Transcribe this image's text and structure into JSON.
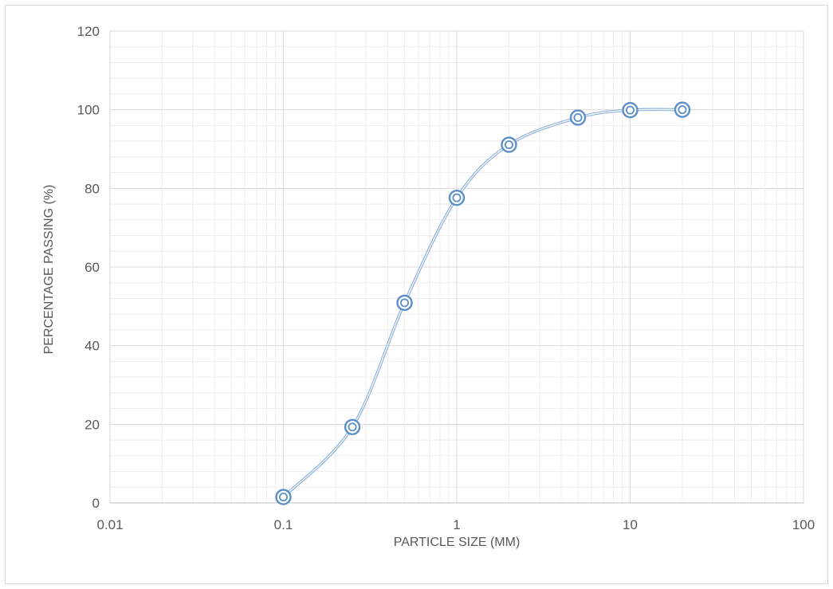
{
  "chart_data": {
    "type": "scatter",
    "title": "",
    "xlabel": "PARTICLE SIZE (MM)",
    "ylabel": "PERCENTAGE PASSING (%)",
    "x_scale": "log",
    "xlim": [
      0.01,
      100
    ],
    "ylim": [
      0,
      120
    ],
    "x_ticks": [
      "0.01",
      "0.1",
      "1",
      "10",
      "100"
    ],
    "y_ticks": [
      "0",
      "20",
      "40",
      "60",
      "80",
      "100",
      "120"
    ],
    "grid": true,
    "legend": "none",
    "line_style": "smoothed",
    "marker": "double-circle",
    "color": "#5b8fc7",
    "series": [
      {
        "x": [
          0.1,
          0.25,
          0.5,
          1,
          2,
          5,
          10,
          20
        ],
        "y": [
          1.5,
          19.3,
          50.9,
          77.6,
          91.1,
          98,
          99.9,
          100
        ]
      }
    ]
  }
}
